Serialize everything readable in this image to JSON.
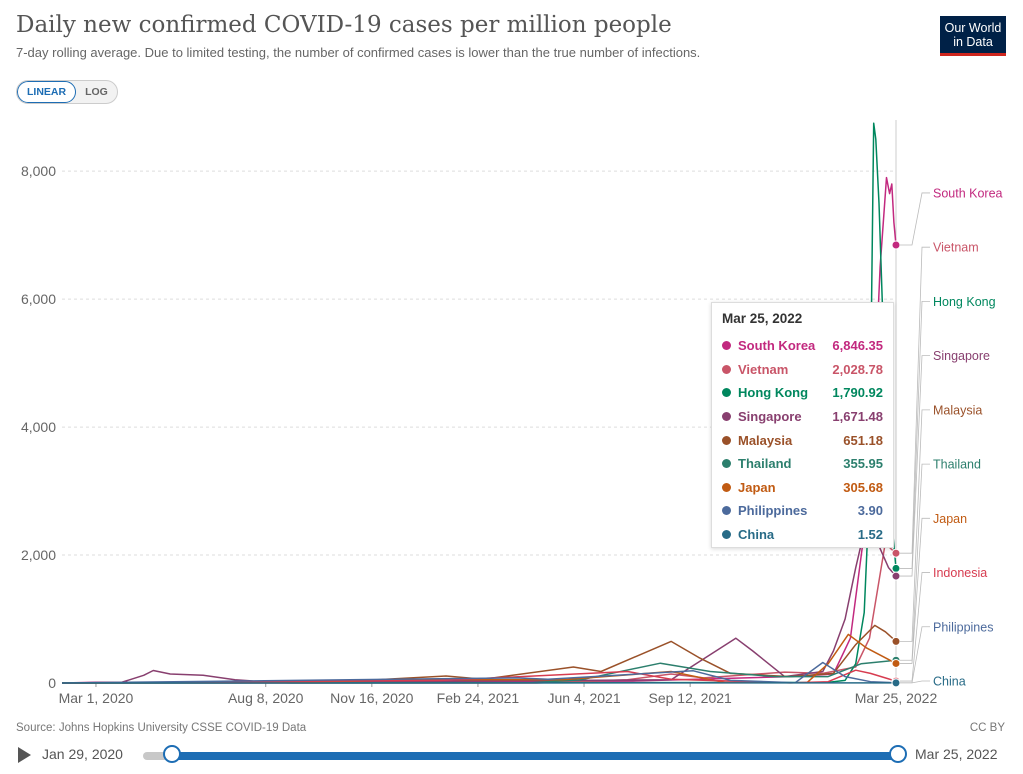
{
  "title": "Daily new confirmed COVID-19 cases per million people",
  "subtitle": "7-day rolling average. Due to limited testing, the number of confirmed cases is lower than the true number of infections.",
  "logo": {
    "line1": "Our World",
    "line2": "in Data"
  },
  "scale_toggle": {
    "linear": "LINEAR",
    "log": "LOG",
    "active": "linear"
  },
  "source": "Source: Johns Hopkins University CSSE COVID-19 Data",
  "license": "CC BY",
  "timeline": {
    "start": "Jan 29, 2020",
    "end": "Mar 25, 2022"
  },
  "tooltip": {
    "date": "Mar 25, 2022",
    "rows": [
      {
        "name": "South Korea",
        "value": "6,846.35",
        "color": "#c2297f"
      },
      {
        "name": "Vietnam",
        "value": "2,028.78",
        "color": "#c95568"
      },
      {
        "name": "Hong Kong",
        "value": "1,790.92",
        "color": "#00875e"
      },
      {
        "name": "Singapore",
        "value": "1,671.48",
        "color": "#883f6f"
      },
      {
        "name": "Malaysia",
        "value": "651.18",
        "color": "#9a5129"
      },
      {
        "name": "Thailand",
        "value": "355.95",
        "color": "#2c7f6d"
      },
      {
        "name": "Japan",
        "value": "305.68",
        "color": "#c15b13"
      },
      {
        "name": "Philippines",
        "value": "3.90",
        "color": "#4c6a9c"
      },
      {
        "name": "China",
        "value": "1.52",
        "color": "#286b87"
      }
    ]
  },
  "chart_data": {
    "type": "line",
    "x_start": "2020-01-29",
    "x_end": "2022-03-25",
    "x_tick_labels": [
      "Mar 1, 2020",
      "Aug 8, 2020",
      "Nov 16, 2020",
      "Feb 24, 2021",
      "Jun 4, 2021",
      "Sep 12, 2021",
      "Mar 25, 2022"
    ],
    "x_tick_dates": [
      "2020-03-01",
      "2020-08-08",
      "2020-11-16",
      "2021-02-24",
      "2021-06-04",
      "2021-09-12",
      "2022-03-25"
    ],
    "y_ticks": [
      0,
      2000,
      4000,
      6000,
      8000
    ],
    "y_tick_labels": [
      "0",
      "2,000",
      "4,000",
      "6,000",
      "8,000"
    ],
    "ylim": [
      0,
      8800
    ],
    "grid": true,
    "series": [
      {
        "name": "South Korea",
        "color": "#c2297f",
        "end_label": "South Korea",
        "points": [
          [
            "2020-01-29",
            0
          ],
          [
            "2020-03-01",
            12
          ],
          [
            "2020-09-01",
            6
          ],
          [
            "2020-12-25",
            20
          ],
          [
            "2021-07-20",
            30
          ],
          [
            "2021-12-15",
            100
          ],
          [
            "2022-01-25",
            140
          ],
          [
            "2022-02-10",
            700
          ],
          [
            "2022-02-25",
            2600
          ],
          [
            "2022-03-04",
            4200
          ],
          [
            "2022-03-10",
            6500
          ],
          [
            "2022-03-16",
            7900
          ],
          [
            "2022-03-19",
            7650
          ],
          [
            "2022-03-21",
            7800
          ],
          [
            "2022-03-23",
            7200
          ],
          [
            "2022-03-25",
            6846.35
          ]
        ]
      },
      {
        "name": "Vietnam",
        "color": "#c95568",
        "end_label": "Vietnam",
        "points": [
          [
            "2020-01-29",
            0
          ],
          [
            "2021-04-20",
            0
          ],
          [
            "2021-07-15",
            50
          ],
          [
            "2021-08-25",
            140
          ],
          [
            "2021-09-25",
            80
          ],
          [
            "2021-12-10",
            170
          ],
          [
            "2022-01-15",
            150
          ],
          [
            "2022-02-15",
            250
          ],
          [
            "2022-02-28",
            700
          ],
          [
            "2022-03-08",
            1500
          ],
          [
            "2022-03-15",
            2200
          ],
          [
            "2022-03-20",
            2100
          ],
          [
            "2022-03-25",
            2028.78
          ]
        ]
      },
      {
        "name": "Hong Kong",
        "color": "#00875e",
        "end_label": "Hong Kong",
        "points": [
          [
            "2020-01-29",
            0
          ],
          [
            "2020-07-25",
            15
          ],
          [
            "2020-09-01",
            2
          ],
          [
            "2022-01-20",
            10
          ],
          [
            "2022-02-05",
            40
          ],
          [
            "2022-02-15",
            300
          ],
          [
            "2022-02-23",
            1100
          ],
          [
            "2022-02-28",
            3000
          ],
          [
            "2022-03-02",
            6000
          ],
          [
            "2022-03-04",
            8750
          ],
          [
            "2022-03-06",
            8500
          ],
          [
            "2022-03-09",
            7500
          ],
          [
            "2022-03-12",
            6000
          ],
          [
            "2022-03-16",
            4200
          ],
          [
            "2022-03-20",
            2700
          ],
          [
            "2022-03-25",
            1790.92
          ]
        ]
      },
      {
        "name": "Singapore",
        "color": "#883f6f",
        "end_label": "Singapore",
        "points": [
          [
            "2020-01-29",
            0
          ],
          [
            "2020-03-25",
            10
          ],
          [
            "2020-04-15",
            120
          ],
          [
            "2020-04-24",
            195
          ],
          [
            "2020-05-10",
            140
          ],
          [
            "2020-06-10",
            120
          ],
          [
            "2020-07-10",
            50
          ],
          [
            "2020-08-15",
            10
          ],
          [
            "2021-08-25",
            50
          ],
          [
            "2021-10-25",
            700
          ],
          [
            "2021-11-10",
            500
          ],
          [
            "2021-12-10",
            100
          ],
          [
            "2022-01-15",
            180
          ],
          [
            "2022-01-25",
            500
          ],
          [
            "2022-02-05",
            1000
          ],
          [
            "2022-02-15",
            1800
          ],
          [
            "2022-02-22",
            2300
          ],
          [
            "2022-03-01",
            2600
          ],
          [
            "2022-03-10",
            2100
          ],
          [
            "2022-03-18",
            1800
          ],
          [
            "2022-03-25",
            1671.48
          ]
        ]
      },
      {
        "name": "Malaysia",
        "color": "#9a5129",
        "end_label": "Malaysia",
        "points": [
          [
            "2020-01-29",
            0
          ],
          [
            "2020-10-01",
            5
          ],
          [
            "2021-01-25",
            110
          ],
          [
            "2021-03-01",
            60
          ],
          [
            "2021-05-25",
            250
          ],
          [
            "2021-06-20",
            180
          ],
          [
            "2021-08-25",
            650
          ],
          [
            "2021-09-20",
            400
          ],
          [
            "2021-10-20",
            150
          ],
          [
            "2021-12-15",
            100
          ],
          [
            "2022-01-25",
            150
          ],
          [
            "2022-02-15",
            600
          ],
          [
            "2022-03-05",
            900
          ],
          [
            "2022-03-15",
            800
          ],
          [
            "2022-03-25",
            651.18
          ]
        ]
      },
      {
        "name": "Thailand",
        "color": "#2c7f6d",
        "end_label": "Thailand",
        "points": [
          [
            "2020-01-29",
            0
          ],
          [
            "2021-04-15",
            5
          ],
          [
            "2021-06-01",
            50
          ],
          [
            "2021-08-15",
            310
          ],
          [
            "2021-10-01",
            180
          ],
          [
            "2021-12-01",
            100
          ],
          [
            "2022-01-20",
            100
          ],
          [
            "2022-02-20",
            300
          ],
          [
            "2022-03-25",
            355.95
          ]
        ]
      },
      {
        "name": "Japan",
        "color": "#c15b13",
        "end_label": "Japan",
        "points": [
          [
            "2020-01-29",
            0
          ],
          [
            "2020-08-10",
            8
          ],
          [
            "2021-01-12",
            50
          ],
          [
            "2021-05-15",
            50
          ],
          [
            "2021-08-25",
            180
          ],
          [
            "2021-10-15",
            5
          ],
          [
            "2021-12-31",
            5
          ],
          [
            "2022-01-20",
            300
          ],
          [
            "2022-02-08",
            760
          ],
          [
            "2022-02-25",
            550
          ],
          [
            "2022-03-25",
            305.68
          ]
        ]
      },
      {
        "name": "Indonesia",
        "color": "#d73c50",
        "end_label": "Indonesia",
        "points": [
          [
            "2020-01-29",
            0
          ],
          [
            "2021-01-20",
            40
          ],
          [
            "2021-07-15",
            180
          ],
          [
            "2021-08-25",
            60
          ],
          [
            "2021-12-15",
            1
          ],
          [
            "2022-01-20",
            20
          ],
          [
            "2022-02-15",
            200
          ],
          [
            "2022-03-01",
            150
          ],
          [
            "2022-03-25",
            30
          ]
        ]
      },
      {
        "name": "Philippines",
        "color": "#4c6a9c",
        "end_label": "Philippines",
        "points": [
          [
            "2020-01-29",
            0
          ],
          [
            "2021-04-01",
            80
          ],
          [
            "2021-05-01",
            60
          ],
          [
            "2021-09-15",
            190
          ],
          [
            "2021-10-20",
            40
          ],
          [
            "2021-12-20",
            5
          ],
          [
            "2022-01-15",
            320
          ],
          [
            "2022-02-05",
            100
          ],
          [
            "2022-03-01",
            20
          ],
          [
            "2022-03-25",
            3.9
          ]
        ]
      },
      {
        "name": "China",
        "color": "#286b87",
        "end_label": "China",
        "points": [
          [
            "2020-01-29",
            0
          ],
          [
            "2022-03-25",
            1.52
          ]
        ]
      }
    ]
  }
}
